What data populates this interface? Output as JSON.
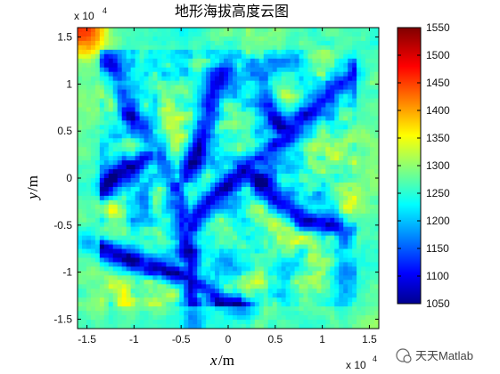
{
  "chart_data": {
    "type": "heatmap",
    "title": "地形海拔高度云图",
    "xlabel": "x",
    "xlabel_unit": "/m",
    "ylabel": "y",
    "ylabel_unit": "/m",
    "x_multiplier": "x 10",
    "x_multiplier_exp": "4",
    "y_multiplier": "x 10",
    "y_multiplier_exp": "4",
    "xlim": [
      -1.6,
      1.6
    ],
    "ylim": [
      -1.6,
      1.6
    ],
    "x_ticks": [
      -1.5,
      -1,
      -0.5,
      0,
      0.5,
      1,
      1.5
    ],
    "x_tick_labels": [
      "-1.5",
      "-1",
      "-0.5",
      "0",
      "0.5",
      "1",
      "1.5"
    ],
    "y_ticks": [
      1.5,
      1,
      0.5,
      0,
      -0.5,
      -1,
      -1.5
    ],
    "y_tick_labels": [
      "1.5",
      "1",
      "0.5",
      "0",
      "-0.5",
      "-1",
      "-1.5"
    ],
    "colorbar": {
      "colormap": "jet",
      "range": [
        1050,
        1550
      ],
      "ticks": [
        1550,
        1500,
        1450,
        1400,
        1350,
        1300,
        1250,
        1200,
        1150,
        1100,
        1050
      ],
      "tick_labels": [
        "1550",
        "1500",
        "1450",
        "1400",
        "1350",
        "1300",
        "1250",
        "1200",
        "1150",
        "1100",
        "1050"
      ]
    },
    "description_values": {
      "elevation_min": 1050,
      "elevation_max": 1550
    },
    "grid": false
  },
  "watermark": {
    "text": "天天Matlab"
  }
}
